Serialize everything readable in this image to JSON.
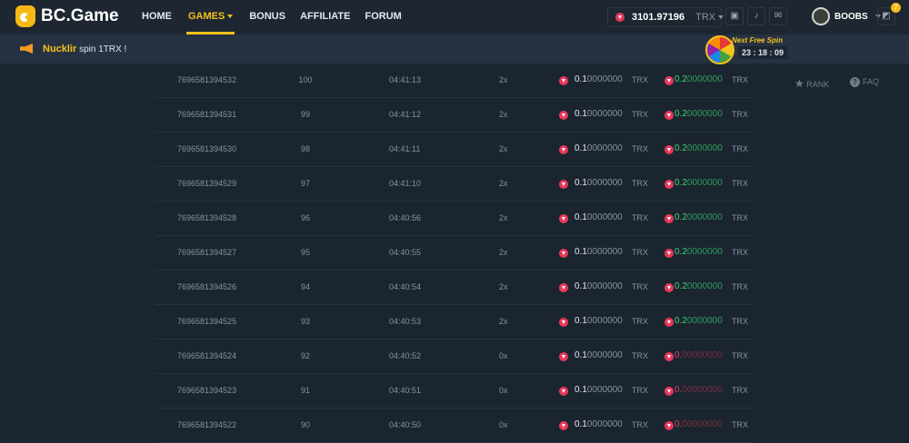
{
  "header": {
    "logo": "BC.Game",
    "nav": [
      {
        "label": "HOME"
      },
      {
        "label": "GAMES",
        "active": true
      },
      {
        "label": "BONUS"
      },
      {
        "label": "AFFILIATE"
      },
      {
        "label": "FORUM"
      }
    ],
    "balance": "3101.97196",
    "currency": "TRX",
    "username": "BOOBS",
    "notification_badge": "7"
  },
  "announcement": {
    "user": "Nucklir",
    "text": "spin 1TRX !"
  },
  "free_spin": {
    "label": "Next Free Spin",
    "timer": "23 : 18 : 09"
  },
  "subnav": {
    "rank": "RANK",
    "faq": "FAQ"
  },
  "rows": [
    {
      "id": "7696581394532",
      "n": "100",
      "time": "04:41:13",
      "mult": "2x",
      "amt_hi": "0.1",
      "amt_lo": "0000000",
      "cur": "TRX",
      "pay_hi": "0.2",
      "pay_lo": "0000000",
      "win": true
    },
    {
      "id": "7696581394531",
      "n": "99",
      "time": "04:41:12",
      "mult": "2x",
      "amt_hi": "0.1",
      "amt_lo": "0000000",
      "cur": "TRX",
      "pay_hi": "0.2",
      "pay_lo": "0000000",
      "win": true
    },
    {
      "id": "7696581394530",
      "n": "98",
      "time": "04:41:11",
      "mult": "2x",
      "amt_hi": "0.1",
      "amt_lo": "0000000",
      "cur": "TRX",
      "pay_hi": "0.2",
      "pay_lo": "0000000",
      "win": true
    },
    {
      "id": "7696581394529",
      "n": "97",
      "time": "04:41:10",
      "mult": "2x",
      "amt_hi": "0.1",
      "amt_lo": "0000000",
      "cur": "TRX",
      "pay_hi": "0.2",
      "pay_lo": "0000000",
      "win": true
    },
    {
      "id": "7696581394528",
      "n": "96",
      "time": "04:40:56",
      "mult": "2x",
      "amt_hi": "0.1",
      "amt_lo": "0000000",
      "cur": "TRX",
      "pay_hi": "0.2",
      "pay_lo": "0000000",
      "win": true
    },
    {
      "id": "7696581394527",
      "n": "95",
      "time": "04:40:55",
      "mult": "2x",
      "amt_hi": "0.1",
      "amt_lo": "0000000",
      "cur": "TRX",
      "pay_hi": "0.2",
      "pay_lo": "0000000",
      "win": true
    },
    {
      "id": "7696581394526",
      "n": "94",
      "time": "04:40:54",
      "mult": "2x",
      "amt_hi": "0.1",
      "amt_lo": "0000000",
      "cur": "TRX",
      "pay_hi": "0.2",
      "pay_lo": "0000000",
      "win": true
    },
    {
      "id": "7696581394525",
      "n": "93",
      "time": "04:40:53",
      "mult": "2x",
      "amt_hi": "0.1",
      "amt_lo": "0000000",
      "cur": "TRX",
      "pay_hi": "0.2",
      "pay_lo": "0000000",
      "win": true
    },
    {
      "id": "7696581394524",
      "n": "92",
      "time": "04:40:52",
      "mult": "0x",
      "amt_hi": "0.1",
      "amt_lo": "0000000",
      "cur": "TRX",
      "pay_hi": "0.",
      "pay_lo": "00000000",
      "win": false
    },
    {
      "id": "7696581394523",
      "n": "91",
      "time": "04:40:51",
      "mult": "0x",
      "amt_hi": "0.1",
      "amt_lo": "0000000",
      "cur": "TRX",
      "pay_hi": "0.",
      "pay_lo": "00000000",
      "win": false
    },
    {
      "id": "7696581394522",
      "n": "90",
      "time": "04:40:50",
      "mult": "0x",
      "amt_hi": "0.1",
      "amt_lo": "0000000",
      "cur": "TRX",
      "pay_hi": "0.",
      "pay_lo": "00000000",
      "win": false
    }
  ]
}
